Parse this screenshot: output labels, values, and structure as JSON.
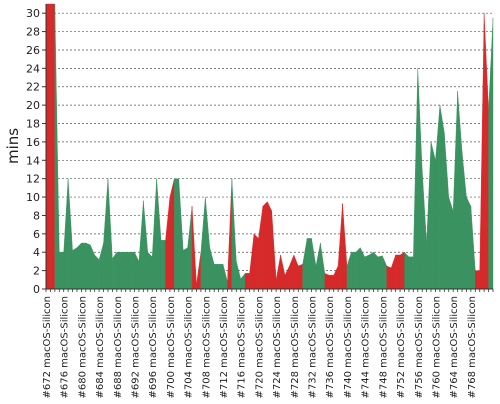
{
  "chart_data": {
    "type": "area",
    "ylabel": "mins",
    "xlabel": "",
    "ylim": [
      0,
      31
    ],
    "yticks": [
      0,
      2,
      4,
      6,
      8,
      10,
      12,
      14,
      16,
      18,
      20,
      22,
      24,
      26,
      28,
      30
    ],
    "grid": true,
    "colors": {
      "pass": "#3a9261",
      "fail": "#d62a2a"
    },
    "x_start": 672,
    "x_label_suffix": "macOS-Silicon",
    "x_label_prefix": "#",
    "tick_labels": [
      "#672 macOS-Silicon",
      "#676 macOS-Silicon",
      "#680 macOS-Silicon",
      "#684 macOS-Silicon",
      "#688 macOS-Silicon",
      "#692 macOS-Silicon",
      "#696 macOS-Silicon",
      "#700 macOS-Silicon",
      "#704 macOS-Silicon",
      "#708 macOS-Silicon",
      "#712 macOS-Silicon",
      "#716 macOS-Silicon",
      "#720 macOS-Silicon",
      "#724 macOS-Silicon",
      "#728 macOS-Silicon",
      "#732 macOS-Silicon",
      "#736 macOS-Silicon",
      "#740 macOS-Silicon",
      "#744 macOS-Silicon",
      "#748 macOS-Silicon",
      "#752 macOS-Silicon",
      "#756 macOS-Silicon",
      "#760 macOS-Silicon",
      "#764 macOS-Silicon",
      "#768 macOS-Silicon"
    ],
    "values": [
      31,
      31,
      31,
      4,
      4,
      12,
      4.2,
      4.5,
      5,
      5,
      4.8,
      3.7,
      3.2,
      5,
      12,
      3.3,
      4,
      4,
      4,
      4,
      4,
      3,
      9.6,
      4,
      3.5,
      12,
      5.3,
      5.3,
      10,
      12,
      12,
      4.2,
      4.5,
      9,
      0.5,
      4,
      10,
      4.5,
      2.7,
      2.7,
      2.7,
      0.8,
      12,
      3,
      1.1,
      1.7,
      1.7,
      6,
      5.5,
      9,
      9.5,
      8.5,
      1,
      3.7,
      1.5,
      2.5,
      3.7,
      2.5,
      2.7,
      5.5,
      5.5,
      2.5,
      5,
      1.7,
      1.5,
      1.5,
      2.5,
      9.3,
      2.5,
      4,
      4,
      4.5,
      3.5,
      3.7,
      4,
      3.5,
      3.6,
      2.5,
      2.3,
      3.7,
      3.7,
      4,
      3.5,
      3.5,
      24,
      13,
      5,
      16,
      14,
      20,
      17,
      10,
      8.5,
      21.5,
      15,
      10,
      9,
      2,
      2,
      30,
      19.5,
      29.5
    ],
    "status": [
      "fail",
      "fail",
      "pass",
      "pass",
      "pass",
      "pass",
      "pass",
      "pass",
      "pass",
      "pass",
      "pass",
      "pass",
      "pass",
      "pass",
      "pass",
      "pass",
      "pass",
      "pass",
      "pass",
      "pass",
      "pass",
      "pass",
      "pass",
      "pass",
      "pass",
      "pass",
      "pass",
      "fail",
      "fail",
      "pass",
      "pass",
      "pass",
      "pass",
      "fail",
      "fail",
      "pass",
      "pass",
      "pass",
      "pass",
      "pass",
      "pass",
      "fail",
      "pass",
      "pass",
      "pass",
      "fail",
      "fail",
      "fail",
      "fail",
      "fail",
      "fail",
      "fail",
      "fail",
      "fail",
      "fail",
      "fail",
      "fail",
      "fail",
      "pass",
      "pass",
      "pass",
      "pass",
      "pass",
      "fail",
      "fail",
      "fail",
      "fail",
      "fail",
      "pass",
      "pass",
      "pass",
      "pass",
      "pass",
      "pass",
      "pass",
      "pass",
      "pass",
      "fail",
      "fail",
      "fail",
      "fail",
      "pass",
      "pass",
      "pass",
      "pass",
      "pass",
      "pass",
      "pass",
      "pass",
      "pass",
      "pass",
      "pass",
      "pass",
      "pass",
      "pass",
      "pass",
      "pass",
      "fail",
      "fail",
      "fail",
      "pass",
      "fail"
    ]
  }
}
